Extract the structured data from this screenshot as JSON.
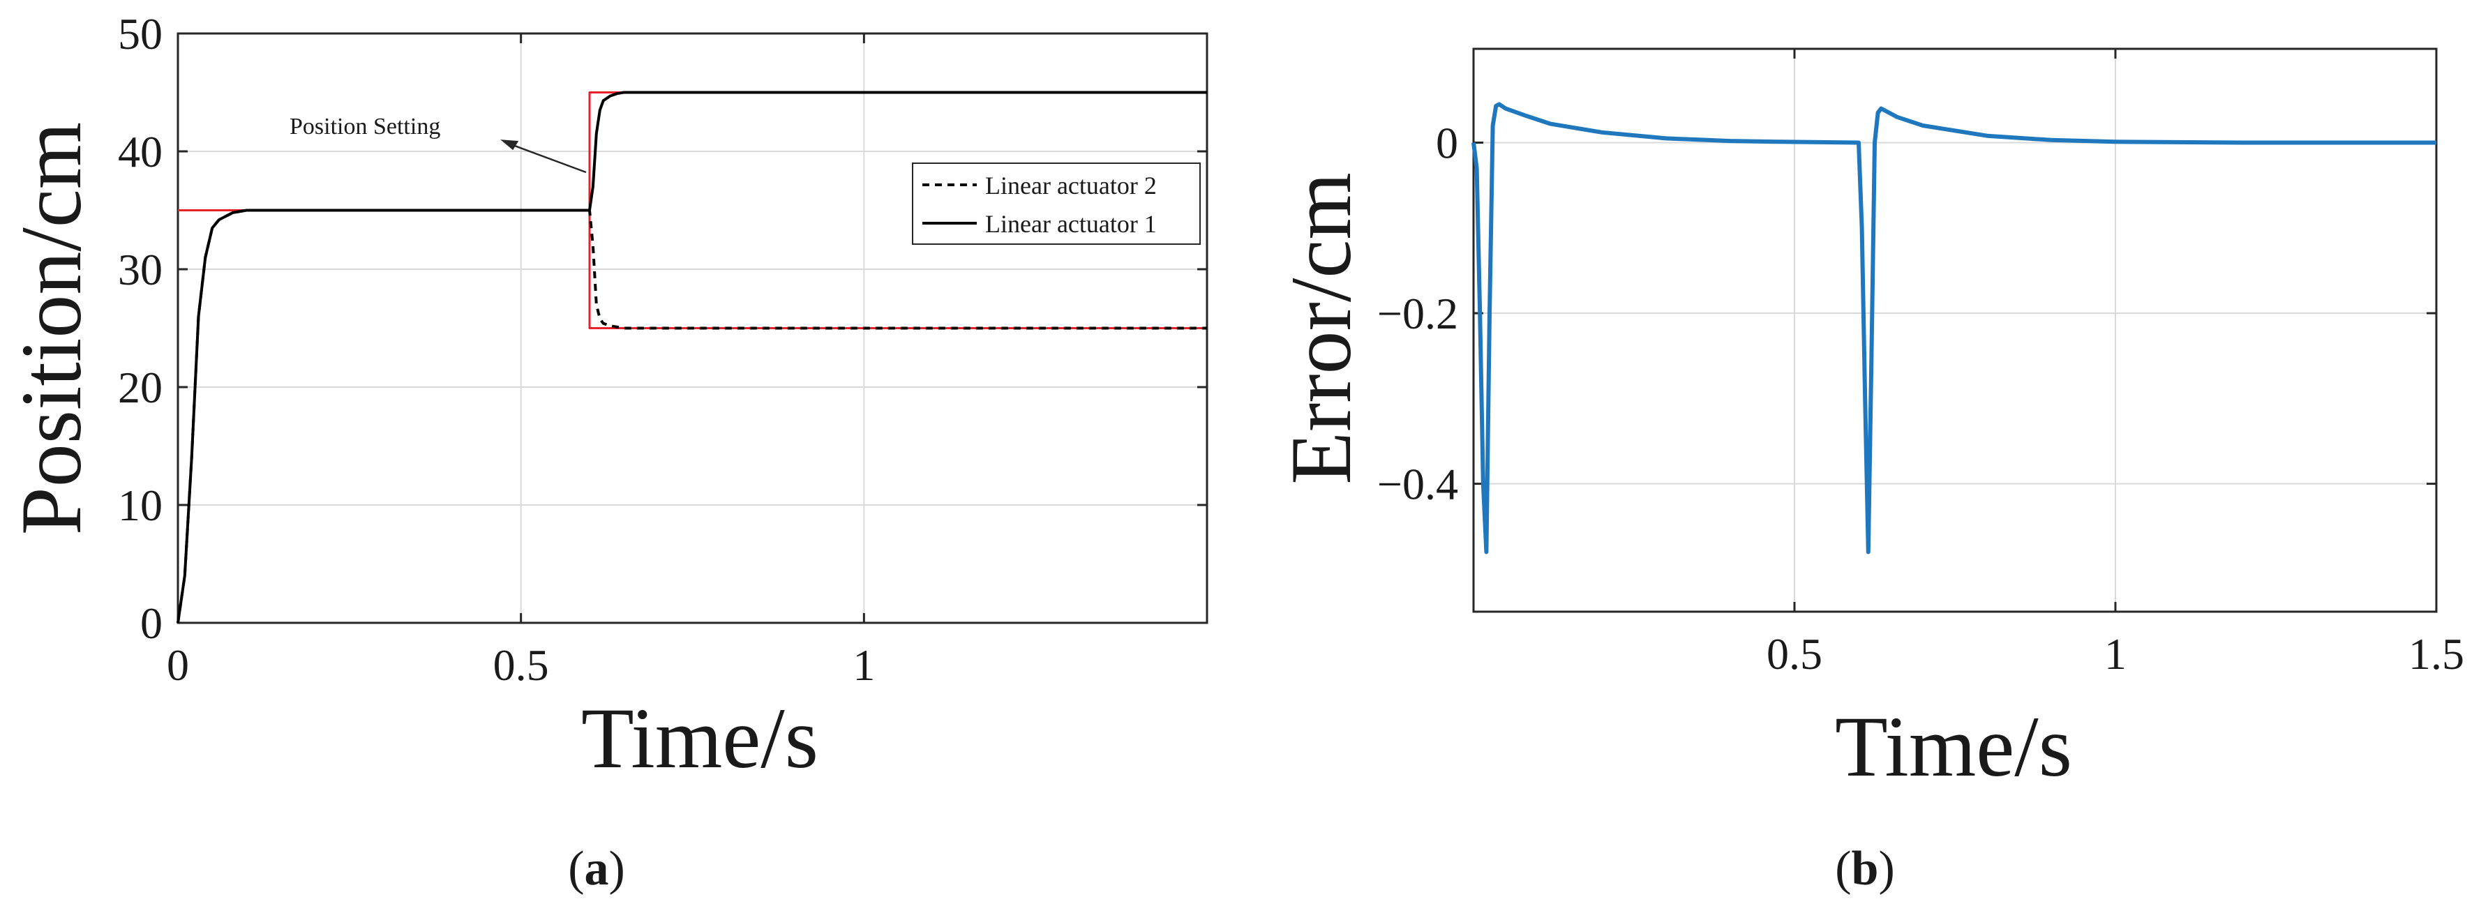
{
  "figure": {
    "panels": [
      {
        "id": "a",
        "label_open": "(",
        "label_letter": "a",
        "label_close": ")"
      },
      {
        "id": "b",
        "label_open": "(",
        "label_letter": "b",
        "label_close": ")"
      }
    ]
  },
  "colors": {
    "setpoint": "#e8202a",
    "actuator": "#000000",
    "error": "#1f77bd",
    "grid": "#d9d9d9",
    "axes": "#262626"
  },
  "chart_data": [
    {
      "type": "line",
      "panel": "a",
      "xlabel": "Time/s",
      "ylabel": "Position/cm",
      "xlim": [
        0,
        1.5
      ],
      "ylim": [
        0,
        50
      ],
      "xticks": [
        0,
        0.5,
        1
      ],
      "xtick_labels": [
        "0",
        "0.5",
        "1"
      ],
      "yticks": [
        0,
        10,
        20,
        30,
        40,
        50
      ],
      "ytick_labels": [
        "0",
        "10",
        "20",
        "30",
        "40",
        "50"
      ],
      "grid": true,
      "legend_placement": "right",
      "annotation": {
        "text": "Position Setting",
        "points_to": {
          "x": 0.47,
          "y": 41
        }
      },
      "series": [
        {
          "name": "Linear actuator 2",
          "style": "dashed",
          "color": "#000000",
          "x": [
            0,
            0.01,
            0.02,
            0.03,
            0.04,
            0.05,
            0.06,
            0.08,
            0.1,
            0.6,
            0.605,
            0.61,
            0.615,
            0.62,
            0.63,
            0.64,
            0.65,
            0.7,
            1.5
          ],
          "y": [
            0,
            4,
            14,
            26,
            31,
            33.5,
            34.2,
            34.8,
            35,
            35,
            32,
            27,
            25.8,
            25.4,
            25.2,
            25.1,
            25,
            25,
            25
          ]
        },
        {
          "name": "Linear actuator 1",
          "style": "solid",
          "color": "#000000",
          "x": [
            0,
            0.01,
            0.02,
            0.03,
            0.04,
            0.05,
            0.06,
            0.08,
            0.1,
            0.6,
            0.605,
            0.61,
            0.615,
            0.62,
            0.63,
            0.64,
            0.65,
            0.7,
            1.5
          ],
          "y": [
            0,
            4,
            14,
            26,
            31,
            33.5,
            34.2,
            34.8,
            35,
            35,
            37,
            41.5,
            43.5,
            44.3,
            44.7,
            44.9,
            45,
            45,
            45
          ]
        },
        {
          "style": "setpoint",
          "color": "#e8202a",
          "x": [
            0,
            0.6,
            0.6,
            1.5
          ],
          "y": [
            35,
            35,
            45,
            45
          ]
        },
        {
          "style": "setpoint",
          "color": "#e8202a",
          "x": [
            0,
            0.6,
            0.6,
            1.5
          ],
          "y": [
            35,
            35,
            25,
            25
          ]
        }
      ]
    },
    {
      "type": "line",
      "panel": "b",
      "xlabel": "Time/s",
      "ylabel": "Error/cm",
      "xlim": [
        0,
        1.5
      ],
      "ylim": [
        -0.55,
        0.11
      ],
      "xticks": [
        0.5,
        1,
        1.5
      ],
      "xtick_labels": [
        "0.5",
        "1",
        "1.5"
      ],
      "yticks": [
        0,
        -0.2,
        -0.4
      ],
      "ytick_labels": [
        "0",
        "−0.2",
        "−0.4"
      ],
      "grid": true,
      "series": [
        {
          "style": "solid",
          "color": "#1f77bd",
          "x": [
            0,
            0.005,
            0.01,
            0.015,
            0.02,
            0.025,
            0.03,
            0.035,
            0.04,
            0.05,
            0.08,
            0.12,
            0.2,
            0.3,
            0.4,
            0.48,
            0.6,
            0.605,
            0.61,
            0.615,
            0.62,
            0.625,
            0.63,
            0.635,
            0.64,
            0.66,
            0.7,
            0.8,
            0.9,
            1.0,
            1.2,
            1.5
          ],
          "y": [
            0,
            -0.03,
            -0.2,
            -0.4,
            -0.48,
            -0.2,
            0.02,
            0.043,
            0.045,
            0.04,
            0.032,
            0.022,
            0.012,
            0.005,
            0.002,
            0.001,
            0,
            -0.1,
            -0.3,
            -0.48,
            -0.25,
            0.0,
            0.035,
            0.04,
            0.038,
            0.03,
            0.02,
            0.008,
            0.003,
            0.001,
            0,
            0
          ]
        }
      ]
    }
  ]
}
